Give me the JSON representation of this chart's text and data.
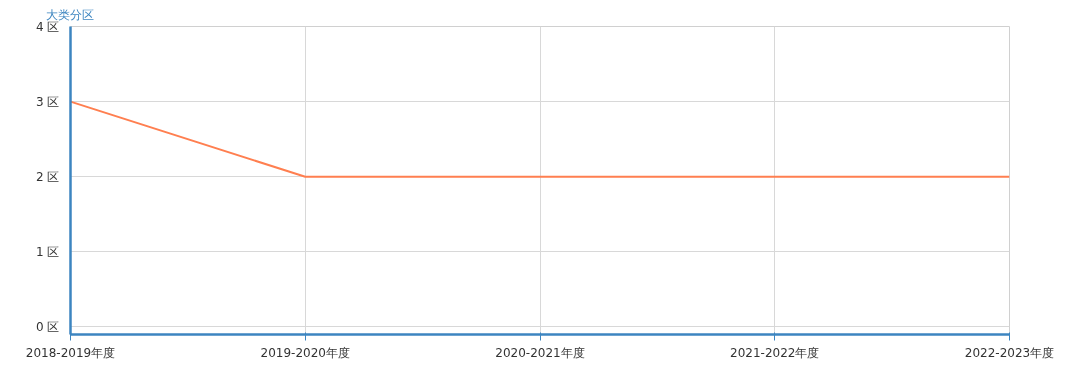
{
  "chart_data": {
    "type": "line",
    "ylabel": "大类分区",
    "categories": [
      "2018-2019年度",
      "2019-2020年度",
      "2020-2021年度",
      "2021-2022年度",
      "2022-2023年度"
    ],
    "series": [
      {
        "color": "#ff7f50",
        "values": [
          3,
          2,
          2,
          2,
          2
        ]
      }
    ],
    "ylim": [
      0,
      4
    ],
    "yticks": [
      {
        "value": 0,
        "label": "0 区"
      },
      {
        "value": 1,
        "label": "1 区"
      },
      {
        "value": 2,
        "label": "2 区"
      },
      {
        "value": 3,
        "label": "3 区"
      },
      {
        "value": 4,
        "label": "4 区"
      }
    ],
    "grid": true
  }
}
